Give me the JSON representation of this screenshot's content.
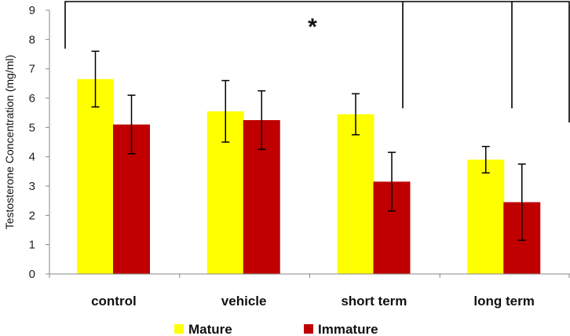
{
  "chart_data": {
    "type": "bar",
    "title": "",
    "xlabel": "",
    "ylabel": "Testosterone Concentration (mg/ml)",
    "ylim": [
      0,
      9
    ],
    "yticks": [
      0,
      1,
      2,
      3,
      4,
      5,
      6,
      7,
      8,
      9
    ],
    "categories": [
      "control",
      "vehicle",
      "short term",
      "long term"
    ],
    "series": [
      {
        "name": "Mature",
        "color": "#FFFF00",
        "values": [
          6.65,
          5.55,
          5.45,
          3.9
        ],
        "errors": [
          0.95,
          1.05,
          0.7,
          0.45
        ]
      },
      {
        "name": "Immature",
        "color": "#C00000",
        "values": [
          5.1,
          5.25,
          3.15,
          2.45
        ],
        "errors": [
          1.0,
          1.0,
          1.0,
          1.3
        ]
      }
    ],
    "significance_label": "*",
    "legend_position": "bottom"
  }
}
